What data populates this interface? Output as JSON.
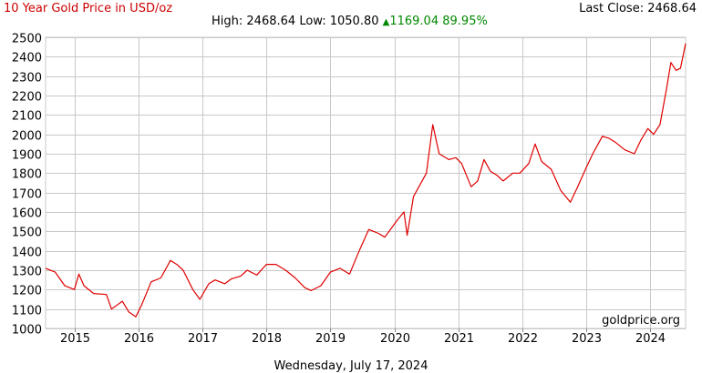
{
  "header": {
    "title": "10 Year Gold Price in USD/oz",
    "last_close_label": "Last Close:",
    "last_close_value": "2468.64",
    "high_label": "High:",
    "high_value": "2468.64",
    "low_label": "Low:",
    "low_value": "1050.80",
    "change_value": "1169.04",
    "change_percent": "89.95%"
  },
  "footer": {
    "date": "Wednesday, July 17, 2024",
    "watermark": "goldprice.org"
  },
  "colors": {
    "line": "#e00000",
    "grid": "#c8c8c8",
    "title": "#cc0000",
    "up": "#008800"
  },
  "chart_data": {
    "type": "line",
    "title": "10 Year Gold Price in USD/oz",
    "xlabel": "",
    "ylabel": "",
    "ylim": [
      1000,
      2500
    ],
    "xlim": [
      2014.55,
      2024.55
    ],
    "x_ticks": [
      "2015",
      "2016",
      "2017",
      "2018",
      "2019",
      "2020",
      "2021",
      "2022",
      "2023",
      "2024"
    ],
    "y_ticks": [
      "2500",
      "2400",
      "2300",
      "2200",
      "2100",
      "2000",
      "1900",
      "1800",
      "1700",
      "1600",
      "1500",
      "1400",
      "1300",
      "1200",
      "1100",
      "1000"
    ],
    "grid": true,
    "series": [
      {
        "name": "",
        "x": [
          2014.55,
          2014.7,
          2014.85,
          2015.0,
          2015.07,
          2015.15,
          2015.3,
          2015.5,
          2015.58,
          2015.75,
          2015.85,
          2015.96,
          2016.05,
          2016.2,
          2016.35,
          2016.5,
          2016.6,
          2016.7,
          2016.85,
          2016.96,
          2017.1,
          2017.2,
          2017.35,
          2017.45,
          2017.6,
          2017.7,
          2017.85,
          2018.0,
          2018.15,
          2018.3,
          2018.45,
          2018.6,
          2018.7,
          2018.85,
          2019.0,
          2019.15,
          2019.3,
          2019.45,
          2019.6,
          2019.75,
          2019.85,
          2019.96,
          2020.05,
          2020.15,
          2020.2,
          2020.3,
          2020.4,
          2020.5,
          2020.6,
          2020.7,
          2020.85,
          2020.96,
          2021.05,
          2021.2,
          2021.3,
          2021.4,
          2021.5,
          2021.6,
          2021.7,
          2021.85,
          2021.96,
          2022.1,
          2022.2,
          2022.3,
          2022.45,
          2022.6,
          2022.75,
          2022.85,
          2023.0,
          2023.1,
          2023.25,
          2023.35,
          2023.45,
          2023.6,
          2023.75,
          2023.85,
          2023.96,
          2024.05,
          2024.15,
          2024.25,
          2024.32,
          2024.4,
          2024.47,
          2024.55
        ],
        "values": [
          1310,
          1290,
          1220,
          1200,
          1280,
          1220,
          1180,
          1175,
          1100,
          1140,
          1085,
          1060,
          1120,
          1240,
          1260,
          1350,
          1330,
          1300,
          1200,
          1150,
          1230,
          1250,
          1230,
          1255,
          1270,
          1300,
          1275,
          1330,
          1330,
          1300,
          1260,
          1210,
          1195,
          1220,
          1290,
          1310,
          1280,
          1400,
          1510,
          1490,
          1470,
          1520,
          1560,
          1600,
          1480,
          1680,
          1740,
          1800,
          2050,
          1900,
          1870,
          1880,
          1850,
          1730,
          1760,
          1870,
          1810,
          1790,
          1760,
          1800,
          1800,
          1850,
          1950,
          1860,
          1820,
          1710,
          1650,
          1720,
          1830,
          1900,
          1990,
          1980,
          1960,
          1920,
          1900,
          1970,
          2030,
          2000,
          2050,
          2230,
          2370,
          2330,
          2340,
          2468
        ]
      }
    ]
  }
}
